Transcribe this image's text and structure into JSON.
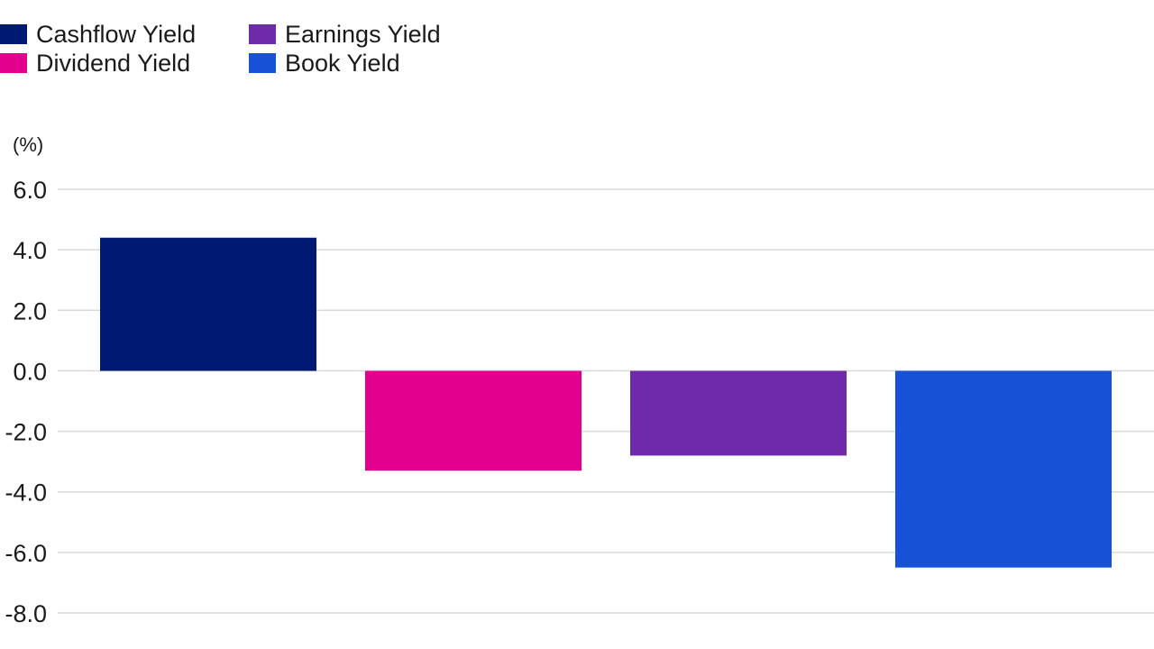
{
  "chart_data": {
    "type": "bar",
    "title": "",
    "xlabel": "",
    "ylabel": "(%)",
    "ylim": [
      -8,
      6
    ],
    "yticks": [
      6,
      4,
      2,
      0,
      -2,
      -4,
      -6,
      -8
    ],
    "ytick_labels": [
      "6.0",
      "4.0",
      "2.0",
      "0.0",
      "-2.0",
      "-4.0",
      "-6.0",
      "-8.0"
    ],
    "grid": true,
    "legend_position": "top-left",
    "categories": [
      "Cashflow Yield",
      "Dividend Yield",
      "Earnings Yield",
      "Book Yield"
    ],
    "values": [
      4.4,
      -3.3,
      -2.8,
      -6.5
    ],
    "colors": [
      "#001a73",
      "#e3008f",
      "#6e2aa8",
      "#1651d6"
    ]
  },
  "legend": {
    "items": [
      {
        "label": "Cashflow Yield",
        "color": "#001a73"
      },
      {
        "label": "Earnings Yield",
        "color": "#6e2aa8"
      },
      {
        "label": "Dividend Yield",
        "color": "#e3008f"
      },
      {
        "label": "Book Yield",
        "color": "#1651d6"
      }
    ]
  }
}
